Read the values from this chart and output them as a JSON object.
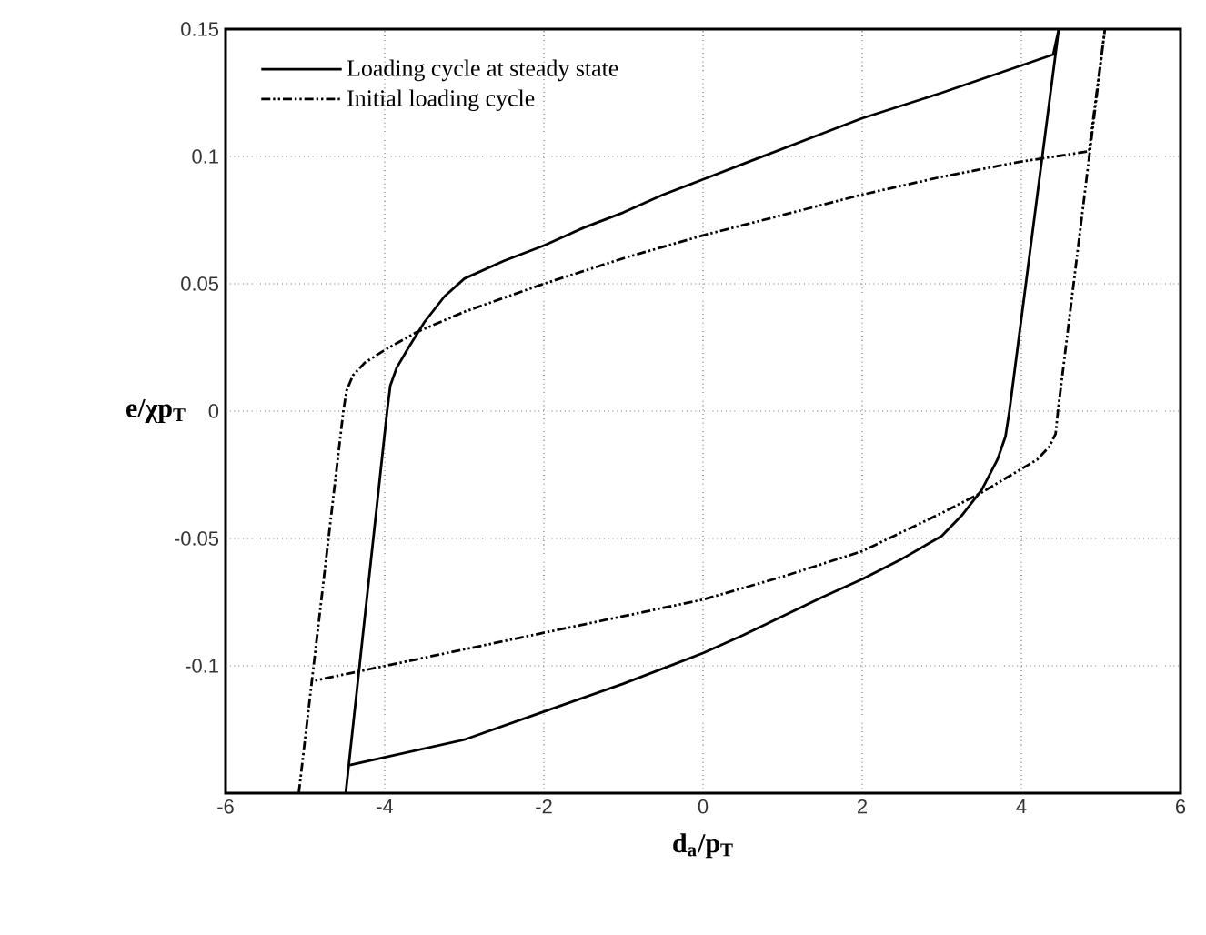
{
  "chart_data": {
    "type": "line",
    "xlabel": "d$_{a}$/p$_{T}$",
    "ylabel": "e/χp$_{T}$",
    "xlim": [
      -6,
      6
    ],
    "xticks": [
      -6,
      -4,
      -2,
      0,
      2,
      4,
      6
    ],
    "ylim": [
      -0.15,
      0.15
    ],
    "yticks": [
      -0.1,
      -0.05,
      0,
      0.05,
      0.1,
      0.15
    ],
    "grid": true,
    "legend": "top left",
    "marker": "none",
    "series": [
      {
        "name": "Loading cycle at steady state",
        "color": "#000000",
        "line_style": "solid",
        "x": [
          -4.49,
          -3.97,
          -3.93,
          -3.85,
          -3.7,
          -3.5,
          -3.25,
          -3,
          -2.5,
          -2,
          -1.5,
          -1,
          -0.5,
          0,
          0.5,
          1.5,
          2,
          3,
          4.4,
          4.47,
          3.85,
          3.8,
          3.7,
          3.5,
          3.25,
          3,
          2.5,
          2,
          1.5,
          0.5,
          0,
          -1,
          -2,
          -3,
          -4.44
        ],
        "values": [
          -0.15,
          0,
          0.01,
          0.017,
          0.025,
          0.035,
          0.045,
          0.052,
          0.059,
          0.065,
          0.072,
          0.078,
          0.085,
          0.091,
          0.097,
          0.109,
          0.115,
          0.125,
          0.14,
          0.15,
          0,
          -0.01,
          -0.019,
          -0.031,
          -0.041,
          -0.049,
          -0.058,
          -0.066,
          -0.073,
          -0.088,
          -0.095,
          -0.107,
          -0.118,
          -0.129,
          -0.139
        ]
      },
      {
        "name": "Initial loading cycle",
        "color": "#000000",
        "line_style": "dashdotdotted",
        "x": [
          -5.08,
          -4.52,
          -4.48,
          -4.4,
          -4.25,
          -4.0,
          -3.6,
          -3,
          -2,
          -1,
          0,
          1,
          2,
          3,
          4,
          4.85,
          5.05,
          4.46,
          4.43,
          4.35,
          4.2,
          3.5,
          3,
          2,
          1,
          0,
          -4.91
        ],
        "values": [
          -0.15,
          0,
          0.008,
          0.014,
          0.019,
          0.024,
          0.031,
          0.039,
          0.05,
          0.06,
          0.069,
          0.077,
          0.085,
          0.092,
          0.098,
          0.102,
          0.15,
          0,
          -0.009,
          -0.014,
          -0.019,
          -0.032,
          -0.04,
          -0.055,
          -0.065,
          -0.074,
          -0.106
        ]
      }
    ]
  }
}
